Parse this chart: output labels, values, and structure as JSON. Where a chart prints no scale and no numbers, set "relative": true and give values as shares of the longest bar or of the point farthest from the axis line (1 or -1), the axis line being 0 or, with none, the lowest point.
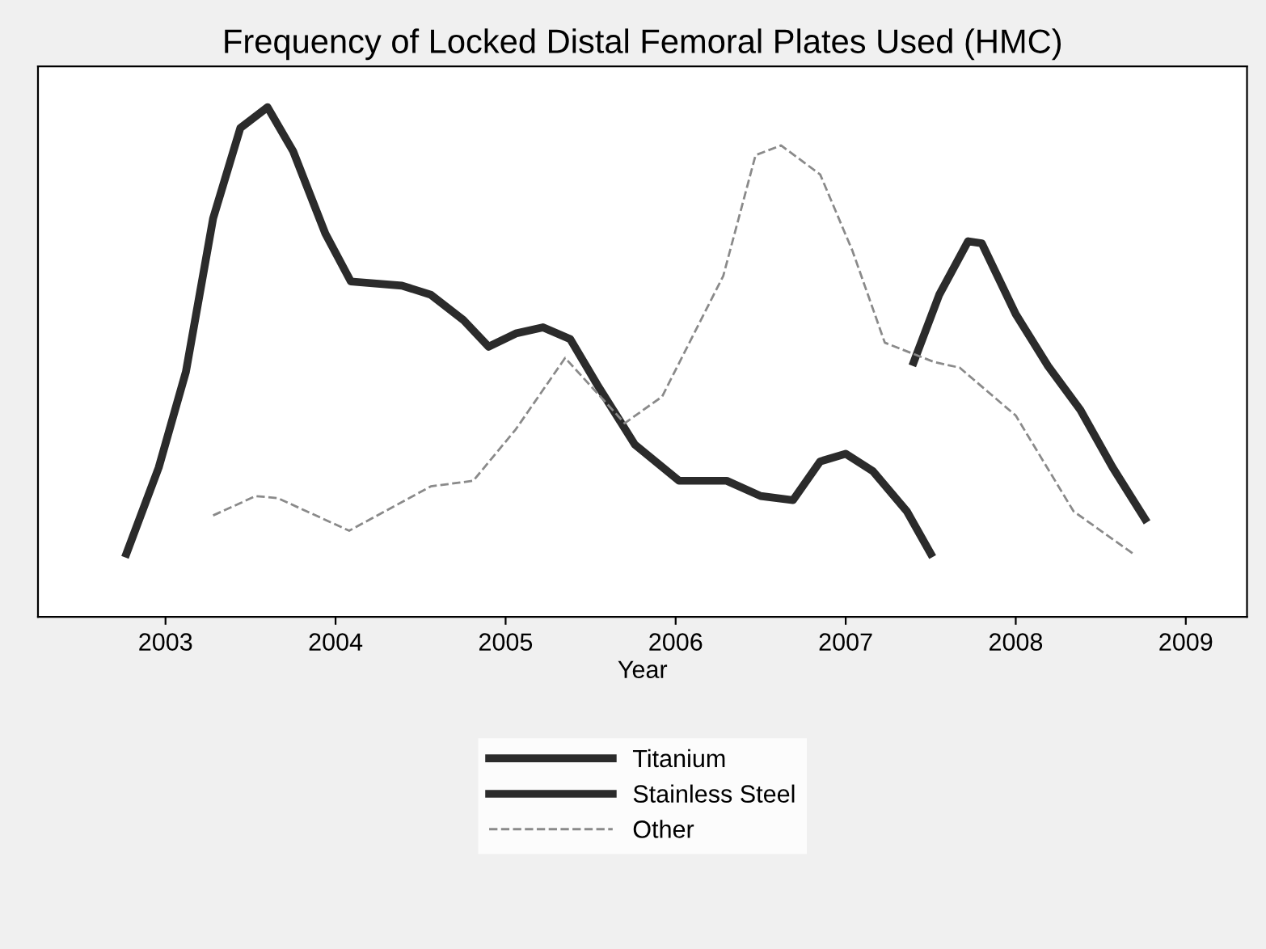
{
  "chart_data": {
    "type": "line",
    "title": "Frequency of Locked Distal Femoral Plates Used (HMC)",
    "xlabel": "Year",
    "relative": true,
    "xlim": [
      2002.25,
      2009.36
    ],
    "xticks": [
      2003,
      2004,
      2005,
      2006,
      2007,
      2008,
      2009
    ],
    "grid": false,
    "legend": "bottom",
    "marker": "none",
    "series": [
      {
        "name": "Titanium",
        "color": "#2b2b2b",
        "line_style": "solid",
        "x": [
          2002.77,
          2002.96,
          2003.12,
          2003.28,
          2003.44,
          2003.6,
          2003.75,
          2003.94,
          2004.09,
          2004.39,
          2004.56,
          2004.75,
          2004.9,
          2005.06,
          2005.22,
          2005.38,
          2005.54,
          2005.76,
          2006.02,
          2006.3,
          2006.5,
          2006.69,
          2006.85,
          2007.0,
          2007.16,
          2007.36,
          2007.5
        ],
        "values": [
          0.124,
          0.293,
          0.481,
          0.782,
          0.959,
          1.0,
          0.914,
          0.752,
          0.658,
          0.65,
          0.632,
          0.583,
          0.53,
          0.556,
          0.568,
          0.545,
          0.455,
          0.338,
          0.267,
          0.267,
          0.237,
          0.229,
          0.305,
          0.32,
          0.286,
          0.207,
          0.124
        ]
      },
      {
        "name": "Stainless Steel",
        "color": "#2b2b2b",
        "line_style": "solid",
        "x": [
          2007.4,
          2007.55,
          2007.72,
          2007.8,
          2008.0,
          2008.19,
          2008.38,
          2008.57,
          2008.76
        ],
        "values": [
          0.5,
          0.632,
          0.737,
          0.733,
          0.594,
          0.492,
          0.406,
          0.293,
          0.192
        ]
      },
      {
        "name": "Other",
        "color": "#8a8a8a",
        "line_style": "dashed",
        "x": [
          2003.28,
          2003.53,
          2003.66,
          2004.08,
          2004.56,
          2004.81,
          2005.06,
          2005.35,
          2005.7,
          2005.92,
          2006.28,
          2006.47,
          2006.62,
          2006.85,
          2007.04,
          2007.23,
          2007.52,
          2007.67,
          2008.0,
          2008.34,
          2008.69
        ],
        "values": [
          0.199,
          0.237,
          0.233,
          0.169,
          0.256,
          0.267,
          0.368,
          0.508,
          0.38,
          0.432,
          0.669,
          0.906,
          0.925,
          0.868,
          0.718,
          0.538,
          0.5,
          0.489,
          0.395,
          0.207,
          0.124
        ]
      }
    ]
  }
}
